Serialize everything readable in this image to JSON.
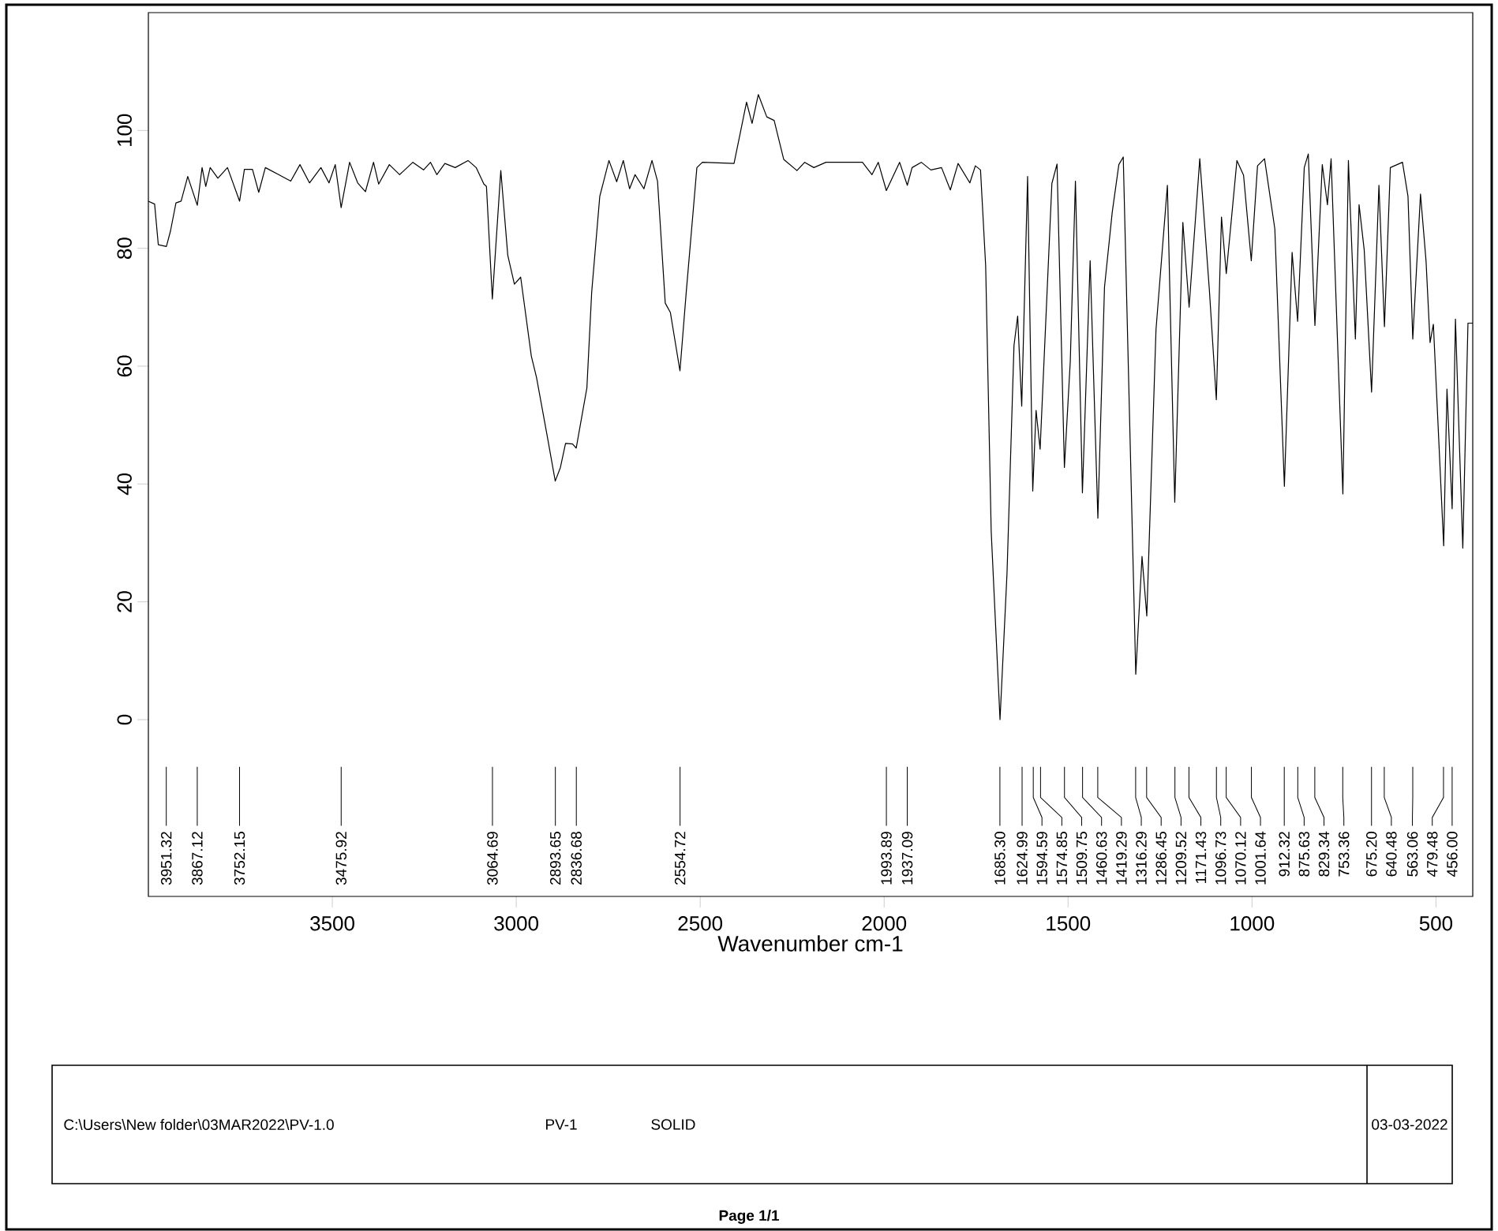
{
  "chart_data": {
    "type": "line",
    "xlabel": "Wavenumber cm-1",
    "color": "#000000",
    "marker": "none",
    "xlim": [
      4000,
      400
    ],
    "ylim": [
      -30,
      120
    ],
    "xticks": [
      3500,
      3000,
      2500,
      2000,
      1500,
      1000,
      500
    ],
    "yticks": [
      0,
      20,
      40,
      60,
      80,
      100
    ],
    "x": [
      4000,
      3983,
      3973,
      3951,
      3940,
      3925,
      3911,
      3893,
      3867,
      3854,
      3844,
      3832,
      3811,
      3785,
      3752,
      3739,
      3717,
      3700,
      3682,
      3646,
      3613,
      3588,
      3562,
      3531,
      3509,
      3492,
      3476,
      3453,
      3431,
      3410,
      3388,
      3374,
      3345,
      3317,
      3281,
      3252,
      3233,
      3216,
      3194,
      3166,
      3131,
      3109,
      3088,
      3081,
      3065,
      3042,
      3023,
      3005,
      2988,
      2959,
      2945,
      2916,
      2894,
      2880,
      2866,
      2847,
      2837,
      2808,
      2795,
      2773,
      2748,
      2727,
      2709,
      2692,
      2677,
      2653,
      2631,
      2616,
      2595,
      2581,
      2555,
      2538,
      2509,
      2494,
      2408,
      2391,
      2374,
      2359,
      2342,
      2319,
      2299,
      2273,
      2237,
      2216,
      2191,
      2158,
      2116,
      2059,
      2033,
      2016,
      1994,
      1958,
      1937,
      1924,
      1899,
      1873,
      1844,
      1820,
      1799,
      1767,
      1752,
      1738,
      1724,
      1709,
      1685,
      1666,
      1647,
      1637,
      1626,
      1610,
      1596,
      1587,
      1576,
      1544,
      1530,
      1510,
      1494,
      1480,
      1461,
      1440,
      1419,
      1401,
      1380,
      1362,
      1350,
      1316,
      1299,
      1286,
      1261,
      1230,
      1210,
      1188,
      1171,
      1142,
      1116,
      1097,
      1083,
      1070,
      1041,
      1023,
      1002,
      985,
      966,
      938,
      912,
      891,
      876,
      858,
      847,
      829,
      809,
      795,
      785,
      753,
      738,
      719,
      709,
      695,
      675,
      655,
      640,
      624,
      591,
      576,
      563,
      542,
      527,
      516,
      507,
      479,
      470,
      456,
      447,
      437,
      427,
      413,
      400
    ],
    "values": [
      88.0,
      87.5,
      80.6,
      80.3,
      82.9,
      87.7,
      88.0,
      92.2,
      87.3,
      93.7,
      90.5,
      93.7,
      91.9,
      93.7,
      88.0,
      93.4,
      93.4,
      89.5,
      93.7,
      92.5,
      91.4,
      94.2,
      91.1,
      93.7,
      91.1,
      94.2,
      86.9,
      94.6,
      91.1,
      89.6,
      94.6,
      90.9,
      94.2,
      92.5,
      94.6,
      93.3,
      94.6,
      92.5,
      94.4,
      93.7,
      94.9,
      93.7,
      90.9,
      90.5,
      71.4,
      93.2,
      78.8,
      73.9,
      75.1,
      61.7,
      58.1,
      48.2,
      40.5,
      42.8,
      46.9,
      46.8,
      46.1,
      56.3,
      72.5,
      88.8,
      94.9,
      91.3,
      94.9,
      90.1,
      92.5,
      90.1,
      94.9,
      91.4,
      70.7,
      69.1,
      59.2,
      72.5,
      93.7,
      94.6,
      94.4,
      99.6,
      104.8,
      101.2,
      106.1,
      102.3,
      101.7,
      95.1,
      93.2,
      94.6,
      93.7,
      94.6,
      94.6,
      94.6,
      92.5,
      94.6,
      89.8,
      94.6,
      90.7,
      93.7,
      94.6,
      93.3,
      93.7,
      89.9,
      94.4,
      91.1,
      94.0,
      93.3,
      77.0,
      32.0,
      0.0,
      24.8,
      63.5,
      68.5,
      53.2,
      92.2,
      38.8,
      52.5,
      45.9,
      91.0,
      94.3,
      42.8,
      60.8,
      91.4,
      38.5,
      77.9,
      34.2,
      73.4,
      86.1,
      94.2,
      95.5,
      7.7,
      27.7,
      17.6,
      66.2,
      90.7,
      36.9,
      84.4,
      70.0,
      95.2,
      73.0,
      54.3,
      85.3,
      75.7,
      94.9,
      92.4,
      77.9,
      94.0,
      95.2,
      83.3,
      39.6,
      79.3,
      67.6,
      93.7,
      96.0,
      66.9,
      94.2,
      87.4,
      95.2,
      38.3,
      94.9,
      64.6,
      87.4,
      79.7,
      55.6,
      90.7,
      66.7,
      93.7,
      94.6,
      88.8,
      64.6,
      89.2,
      77.9,
      64.0,
      67.1,
      29.5,
      56.1,
      35.8,
      68.0,
      48.2,
      29.1,
      67.3,
      67.3
    ],
    "annotations": [
      {
        "text": "3951.32",
        "x": 3951.32
      },
      {
        "text": "3867.12",
        "x": 3867.12
      },
      {
        "text": "3752.15",
        "x": 3752.15
      },
      {
        "text": "3475.92",
        "x": 3475.92
      },
      {
        "text": "3064.69",
        "x": 3064.69
      },
      {
        "text": "2893.65",
        "x": 2893.65
      },
      {
        "text": "2836.68",
        "x": 2836.68
      },
      {
        "text": "2554.72",
        "x": 2554.72
      },
      {
        "text": "1993.89",
        "x": 1993.89
      },
      {
        "text": "1937.09",
        "x": 1937.09
      },
      {
        "text": "1685.30",
        "x": 1685.3
      },
      {
        "text": "1624.99",
        "x": 1624.99
      },
      {
        "text": "1594.59",
        "x": 1594.59
      },
      {
        "text": "1574.85",
        "x": 1574.85
      },
      {
        "text": "1509.75",
        "x": 1509.75
      },
      {
        "text": "1460.63",
        "x": 1460.63
      },
      {
        "text": "1419.29",
        "x": 1419.29
      },
      {
        "text": "1316.29",
        "x": 1316.29
      },
      {
        "text": "1286.45",
        "x": 1286.45
      },
      {
        "text": "1209.52",
        "x": 1209.52
      },
      {
        "text": "1171.43",
        "x": 1171.43
      },
      {
        "text": "1096.73",
        "x": 1096.73
      },
      {
        "text": "1070.12",
        "x": 1070.12
      },
      {
        "text": "1001.64",
        "x": 1001.64
      },
      {
        "text": "912.32",
        "x": 912.32
      },
      {
        "text": "875.63",
        "x": 875.63
      },
      {
        "text": "829.34",
        "x": 829.34
      },
      {
        "text": "753.36",
        "x": 753.36
      },
      {
        "text": "675.20",
        "x": 675.2
      },
      {
        "text": "640.48",
        "x": 640.48
      },
      {
        "text": "563.06",
        "x": 563.06
      },
      {
        "text": "479.48",
        "x": 479.48
      },
      {
        "text": "456.00",
        "x": 456.0
      },
      "C:\\Users\\New folder\\03MAR2022\\PV-1.0",
      "PV-1",
      "SOLID",
      "03-03-2022",
      "Page 1/1"
    ]
  }
}
